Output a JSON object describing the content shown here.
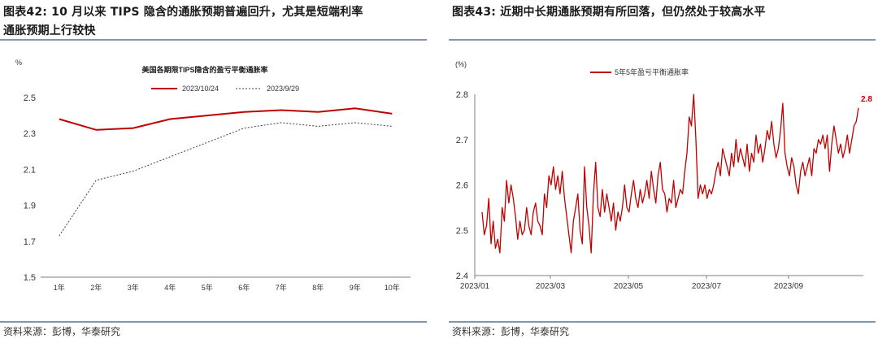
{
  "left": {
    "figure_title_line1": "图表42:  10 月以来 TIPS 隐含的通胀预期普遍回升，尤其是短端利率",
    "figure_title_line2": "通胀预期上行较快",
    "source": "资料来源：彭博，华泰研究",
    "colors": {
      "series1": "#c00000",
      "series2": "#404040",
      "axis": "#7f7f7f"
    },
    "chart_data": {
      "type": "line",
      "title": "美国各期限TIPS隐含的盈亏平衡通胀率",
      "ylabel": "%",
      "categories": [
        "1年",
        "2年",
        "3年",
        "4年",
        "5年",
        "6年",
        "7年",
        "8年",
        "9年",
        "10年"
      ],
      "ylim": [
        1.5,
        2.5
      ],
      "yticks": [
        "2.5",
        "2.3",
        "2.1",
        "1.9",
        "1.7",
        "1.5"
      ],
      "ytick_values": [
        2.5,
        2.3,
        2.1,
        1.9,
        1.7,
        1.5
      ],
      "legend_position": "top",
      "series": [
        {
          "name": "2023/10/24",
          "style": "solid",
          "values": [
            2.38,
            2.32,
            2.33,
            2.38,
            2.4,
            2.42,
            2.43,
            2.42,
            2.44,
            2.41
          ]
        },
        {
          "name": "2023/9/29",
          "style": "dashed",
          "values": [
            1.73,
            2.04,
            2.09,
            2.17,
            2.25,
            2.33,
            2.36,
            2.34,
            2.36,
            2.34
          ]
        }
      ]
    }
  },
  "right": {
    "figure_title": "图表43:  近期中长期通胀预期有所回落，但仍然处于较高水平",
    "source": "资料来源：彭博，华泰研究",
    "colors": {
      "series1": "#c00000",
      "axis": "#7f7f7f",
      "annotation": "#c00000"
    },
    "chart_data": {
      "type": "line",
      "ylabel": "(%)",
      "ylim": [
        2.4,
        2.8
      ],
      "yticks": [
        "2.8",
        "2.7",
        "2.6",
        "2.5",
        "2.4"
      ],
      "ytick_values": [
        2.8,
        2.7,
        2.6,
        2.5,
        2.4
      ],
      "xticks": [
        "2023/01",
        "2023/03",
        "2023/05",
        "2023/07",
        "2023/09"
      ],
      "legend_position": "top",
      "annotation": "2.8",
      "series": [
        {
          "name": "5年5年盈亏平衡通胀率",
          "values": [
            2.54,
            2.49,
            2.51,
            2.57,
            2.47,
            2.52,
            2.46,
            2.48,
            2.45,
            2.55,
            2.52,
            2.61,
            2.56,
            2.6,
            2.57,
            2.53,
            2.48,
            2.52,
            2.49,
            2.5,
            2.55,
            2.51,
            2.49,
            2.54,
            2.56,
            2.52,
            2.51,
            2.49,
            2.58,
            2.55,
            2.62,
            2.6,
            2.64,
            2.59,
            2.62,
            2.58,
            2.63,
            2.57,
            2.53,
            2.49,
            2.45,
            2.52,
            2.55,
            2.58,
            2.5,
            2.47,
            2.64,
            2.55,
            2.51,
            2.45,
            2.58,
            2.65,
            2.55,
            2.53,
            2.59,
            2.54,
            2.58,
            2.55,
            2.52,
            2.56,
            2.5,
            2.54,
            2.52,
            2.55,
            2.6,
            2.55,
            2.54,
            2.58,
            2.61,
            2.57,
            2.55,
            2.59,
            2.56,
            2.58,
            2.61,
            2.57,
            2.63,
            2.59,
            2.56,
            2.62,
            2.65,
            2.59,
            2.58,
            2.54,
            2.57,
            2.56,
            2.61,
            2.55,
            2.57,
            2.59,
            2.58,
            2.63,
            2.67,
            2.75,
            2.73,
            2.8,
            2.7,
            2.57,
            2.6,
            2.58,
            2.6,
            2.57,
            2.59,
            2.58,
            2.6,
            2.63,
            2.65,
            2.62,
            2.68,
            2.66,
            2.64,
            2.62,
            2.67,
            2.64,
            2.7,
            2.65,
            2.68,
            2.66,
            2.64,
            2.69,
            2.63,
            2.67,
            2.65,
            2.71,
            2.67,
            2.69,
            2.65,
            2.68,
            2.72,
            2.7,
            2.74,
            2.69,
            2.66,
            2.68,
            2.72,
            2.78,
            2.67,
            2.64,
            2.62,
            2.66,
            2.64,
            2.6,
            2.58,
            2.63,
            2.65,
            2.62,
            2.64,
            2.66,
            2.62,
            2.68,
            2.67,
            2.7,
            2.69,
            2.71,
            2.68,
            2.71,
            2.63,
            2.69,
            2.73,
            2.7,
            2.67,
            2.69,
            2.66,
            2.68,
            2.71,
            2.67,
            2.7,
            2.73,
            2.74,
            2.77
          ]
        }
      ]
    }
  }
}
